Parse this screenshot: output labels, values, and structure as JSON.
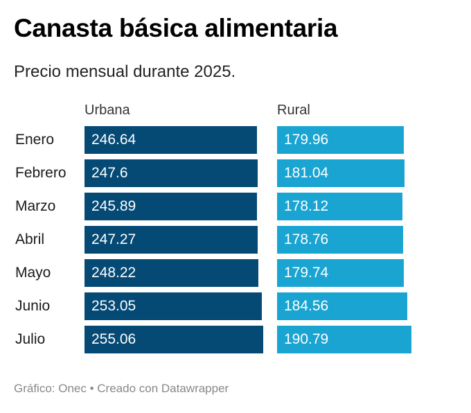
{
  "title": "Canasta básica alimentaria",
  "subtitle": "Precio mensual durante 2025.",
  "footer": "Gráfico: Onec • Creado con Datawrapper",
  "colors": {
    "urbana": "#054a75",
    "rural": "#1aa4d2"
  },
  "chart_data": {
    "type": "bar",
    "categories": [
      "Enero",
      "Febrero",
      "Marzo",
      "Abril",
      "Mayo",
      "Junio",
      "Julio"
    ],
    "series": [
      {
        "name": "Urbana",
        "values": [
          246.64,
          247.6,
          245.89,
          247.27,
          248.22,
          253.05,
          255.06
        ]
      },
      {
        "name": "Rural",
        "values": [
          179.96,
          181.04,
          178.12,
          178.76,
          179.74,
          184.56,
          190.79
        ]
      }
    ]
  }
}
